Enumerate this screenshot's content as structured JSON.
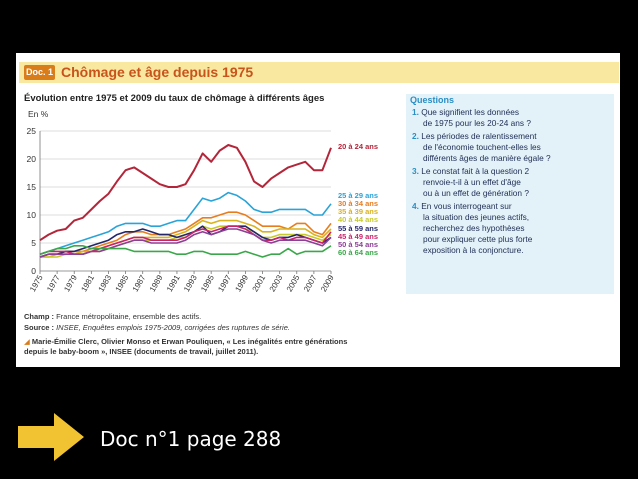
{
  "document": {
    "badge": "Doc. 1",
    "title": "Chômage et âge depuis 1975",
    "subtitle": "Évolution entre 1975 et 2009 du taux de chômage à différents âges"
  },
  "chart_data": {
    "type": "line",
    "ylabel": "En %",
    "ylim": [
      0,
      25
    ],
    "yticks": [
      "0",
      "5",
      "10",
      "15",
      "20",
      "25"
    ],
    "xlim": [
      1975,
      2009
    ],
    "xticks": [
      "1975",
      "1977",
      "1979",
      "1981",
      "1983",
      "1985",
      "1987",
      "1989",
      "1991",
      "1993",
      "1995",
      "1997",
      "1999",
      "2001",
      "2003",
      "2005",
      "2007",
      "2009"
    ],
    "x": [
      1975,
      1976,
      1977,
      1978,
      1979,
      1980,
      1981,
      1982,
      1983,
      1984,
      1985,
      1986,
      1987,
      1988,
      1989,
      1990,
      1991,
      1992,
      1993,
      1994,
      1995,
      1996,
      1997,
      1998,
      1999,
      2000,
      2001,
      2002,
      2003,
      2004,
      2005,
      2006,
      2007,
      2008,
      2009
    ],
    "series": [
      {
        "name": "20 à 24 ans",
        "color": "#b3263a",
        "values": [
          5.5,
          6.5,
          7.2,
          7.5,
          9,
          9.5,
          11,
          12.5,
          13.8,
          16,
          18,
          18.5,
          17.5,
          16.5,
          15.5,
          15,
          15,
          15.5,
          18,
          21,
          19.5,
          21.5,
          22.5,
          22,
          19.5,
          16,
          15,
          16.5,
          17.5,
          18.5,
          19,
          19.5,
          18,
          18,
          22
        ]
      },
      {
        "name": "25 à 29 ans",
        "color": "#29a4d8",
        "values": [
          3,
          3.5,
          4,
          4.5,
          5,
          5.5,
          6,
          6.5,
          7,
          8,
          8.5,
          8.5,
          8.5,
          8,
          8,
          8.5,
          9,
          9,
          11,
          13,
          12.5,
          13,
          14,
          13.5,
          12.5,
          11,
          10.5,
          10.5,
          11,
          11,
          11,
          11,
          10,
          10,
          12
        ]
      },
      {
        "name": "30 à 34 ans",
        "color": "#e87d1e",
        "values": [
          2.5,
          3,
          3,
          3.5,
          3.5,
          3.5,
          4,
          4.5,
          5,
          5.5,
          6.5,
          7,
          7,
          6.5,
          6.5,
          6.5,
          7,
          7.5,
          8.5,
          9.5,
          9.5,
          10,
          10.5,
          10.5,
          10,
          9,
          8,
          8,
          8,
          7.5,
          8.5,
          8.5,
          7,
          6.5,
          8.5
        ]
      },
      {
        "name": "35 à 39 ans",
        "color": "#d9b21c",
        "values": [
          2.5,
          2.5,
          3,
          3,
          3,
          3.5,
          3.5,
          4,
          4.5,
          5,
          5.5,
          6,
          6,
          6,
          6,
          6,
          6.5,
          7,
          8,
          9,
          8.5,
          9,
          9,
          9,
          8.5,
          8,
          7,
          7,
          7.5,
          7.5,
          7.5,
          7.5,
          6.5,
          6,
          7.5
        ]
      },
      {
        "name": "40 à 44 ans",
        "color": "#c7cb2a",
        "values": [
          2.5,
          2.5,
          2.5,
          3,
          3,
          3,
          3.5,
          3.5,
          4,
          4.5,
          5,
          5.5,
          5.5,
          5.5,
          5.5,
          5.5,
          6,
          6,
          7,
          8,
          7.5,
          8,
          8,
          8,
          7.5,
          7,
          6,
          6,
          6.5,
          6.5,
          6.5,
          6.5,
          6,
          5.5,
          6.5
        ]
      },
      {
        "name": "55 à 59 ans",
        "color": "#23276a",
        "values": [
          2.5,
          3,
          3,
          3.5,
          3.5,
          4,
          4.5,
          5,
          5.5,
          6.5,
          7,
          7,
          7.5,
          7,
          6.5,
          6.5,
          6,
          6.5,
          7,
          8,
          6.5,
          7,
          8,
          8,
          8,
          7,
          6,
          5.5,
          6,
          6,
          6.5,
          6,
          5.5,
          5,
          6
        ]
      },
      {
        "name": "45 à 49 ans",
        "color": "#c9226b",
        "values": [
          3,
          3.5,
          3.5,
          3.5,
          3,
          3,
          3.5,
          4,
          4.5,
          5,
          5.5,
          6,
          6,
          5.5,
          5.5,
          5.5,
          5.5,
          6,
          7,
          7.5,
          7,
          7.5,
          8,
          8,
          7.5,
          6.5,
          5.5,
          5.5,
          6,
          5.5,
          6,
          6,
          5.5,
          5,
          7
        ]
      },
      {
        "name": "50 à 54 ans",
        "color": "#8d3e96",
        "values": [
          2.5,
          3,
          3,
          3,
          3,
          3,
          3.5,
          3.5,
          4,
          4.5,
          5,
          5.5,
          5.5,
          5,
          5,
          5,
          5,
          5.5,
          6.5,
          7,
          6.5,
          7,
          7.5,
          7.5,
          7,
          6.5,
          5.5,
          5,
          5.5,
          5.5,
          5.5,
          5.5,
          5,
          4.5,
          6
        ]
      },
      {
        "name": "60 à 64 ans",
        "color": "#3aa84a",
        "values": [
          3,
          3.5,
          4,
          4,
          4.5,
          4.5,
          4,
          4,
          4,
          4,
          4,
          3.5,
          3.5,
          3.5,
          3.5,
          3.5,
          3,
          3,
          3.5,
          3.5,
          3,
          3,
          3,
          3,
          3.5,
          3,
          2.5,
          3,
          3,
          4,
          3,
          3.5,
          3.5,
          3.5,
          4.5
        ]
      }
    ]
  },
  "questions": {
    "title": "Questions",
    "items": [
      {
        "num": "1.",
        "lines": [
          "Que signifient les données",
          "de 1975 pour les 20-24 ans ?"
        ]
      },
      {
        "num": "2.",
        "lines": [
          "Les périodes de ralentissement",
          "de l'économie touchent-elles les",
          "différents âges de manière égale ?"
        ]
      },
      {
        "num": "3.",
        "lines": [
          "Le constat fait à la question 2",
          "renvoie-t-il à un effet d'âge",
          "ou à un effet de génération ?"
        ]
      },
      {
        "num": "4.",
        "lines": [
          "En vous interrogeant sur",
          "la situation des jeunes actifs,",
          "recherchez des hypothèses",
          "pour expliquer cette plus forte",
          "exposition à la conjoncture."
        ]
      }
    ]
  },
  "footer": {
    "champ_label": "Champ :",
    "champ_text": " France métropolitaine, ensemble des actifs.",
    "source_label": "Source :",
    "source_text": " INSEE, Enquêtes emplois 1975-2009, corrigées des ruptures de série.",
    "reference_line1": "Marie-Émilie Clerc, Olivier Monso et Erwan Pouliquen, « Les inégalités entre générations",
    "reference_line2": "depuis le baby-boom », INSEE (documents de travail, juillet 2011)."
  },
  "slide": {
    "caption": "Doc n°1 page 288",
    "arrow_color": "#f1c232",
    "arrow_icon": "right-arrow-icon"
  }
}
